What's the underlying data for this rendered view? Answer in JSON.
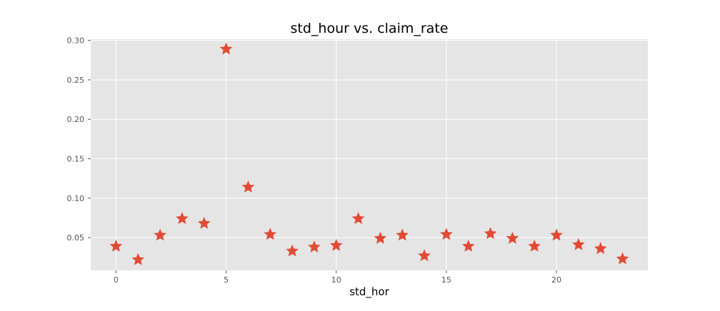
{
  "chart_data": {
    "type": "scatter",
    "title": "std_hour vs. claim_rate",
    "xlabel": "std_hor",
    "ylabel": "",
    "xlim": [
      -1.15,
      24.15
    ],
    "ylim": [
      0.0085,
      0.3015
    ],
    "xticks": [
      0,
      5,
      10,
      15,
      20
    ],
    "xtick_labels": [
      "0",
      "5",
      "10",
      "15",
      "20"
    ],
    "yticks": [
      0.05,
      0.1,
      0.15,
      0.2,
      0.25,
      0.3
    ],
    "ytick_labels": [
      "0.05",
      "0.10",
      "0.15",
      "0.20",
      "0.25",
      "0.30"
    ],
    "grid": true,
    "marker": "star",
    "colors": {
      "background": "#e5e5e5",
      "grid": "#ffffff",
      "marker": "#e24a33",
      "tick_text": "#555555",
      "title_text": "#000000"
    },
    "x": [
      0,
      1,
      2,
      3,
      4,
      5,
      6,
      7,
      8,
      9,
      10,
      11,
      12,
      13,
      14,
      15,
      16,
      17,
      18,
      19,
      20,
      21,
      22,
      23
    ],
    "y": [
      0.039,
      0.022,
      0.053,
      0.074,
      0.068,
      0.289,
      0.114,
      0.054,
      0.033,
      0.038,
      0.04,
      0.074,
      0.049,
      0.053,
      0.027,
      0.054,
      0.039,
      0.055,
      0.049,
      0.039,
      0.053,
      0.041,
      0.036,
      0.023
    ]
  }
}
